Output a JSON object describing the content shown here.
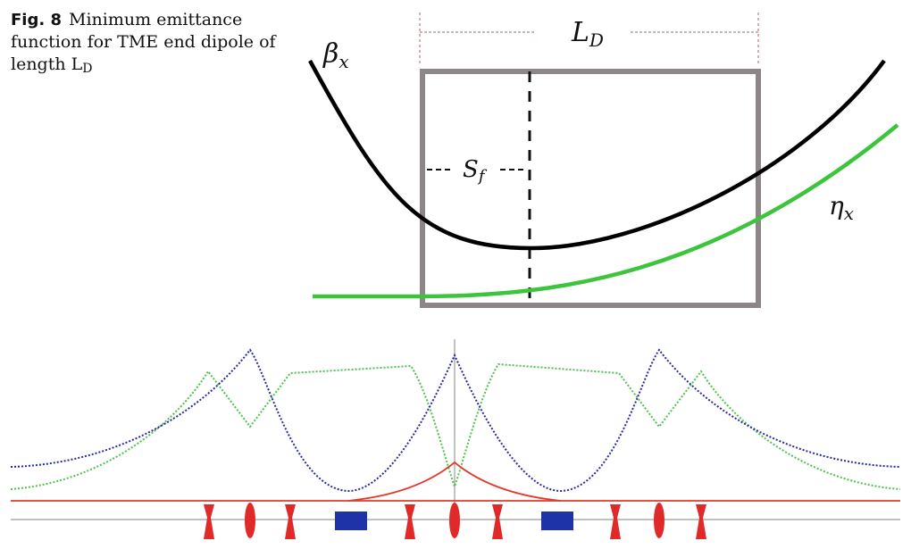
{
  "caption": {
    "fig_label": "Fig. 8",
    "text": "Minimum emittance function for TME end dipole of length L",
    "subscript": "D"
  },
  "top_diagram": {
    "length_label": "L",
    "length_sub": "D",
    "beta_label": "β",
    "beta_sub": "x",
    "eta_label": "η",
    "eta_sub": "x",
    "sf_label": "S",
    "sf_sub": "f",
    "colors": {
      "beta": "#000000",
      "eta": "#3cc43c",
      "box": "#8c8686",
      "dim": "#c89a9a"
    }
  },
  "bottom_diagram": {
    "colors": {
      "beta_x": "#2a2aa0",
      "beta_y": "#4cc44c",
      "dispersion": "#e23a2a",
      "magnet": "#e02a2a",
      "dipole": "#1f33a8",
      "axis": "#999999"
    },
    "elements": [
      "defocus-quad",
      "focus-quad",
      "defocus-quad",
      "dipole",
      "defocus-quad",
      "focus-quad",
      "defocus-quad",
      "dipole",
      "defocus-quad",
      "focus-quad",
      "defocus-quad"
    ]
  }
}
